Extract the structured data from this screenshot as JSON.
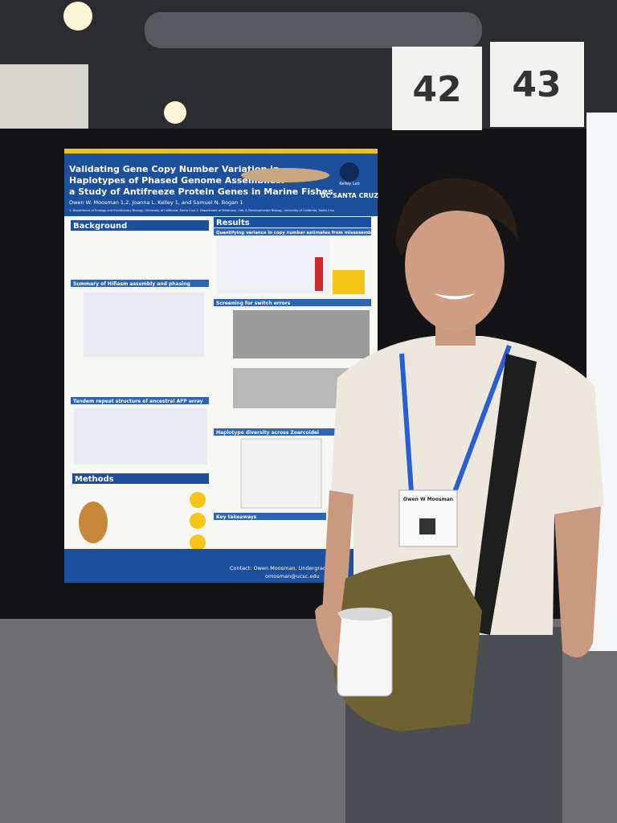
{
  "signs": [
    "42",
    "43"
  ],
  "poster": {
    "title": [
      "Validating Gene Copy Number Variation in",
      "Haplotypes of Phased Genome Assemblies:",
      "a Study of Antifreeze Protein Genes in Marine Fishes"
    ],
    "authors": "Owen W. Moosman 1,2, Joanna L. Kelley 1, and Samuel N. Bogan 1",
    "affiliation": "1. Department of Ecology and Evolutionary Biology, University of California, Santa Cruz  2. Department of Molecular, Cell, & Developmental Biology, University of California, Santa Cruz",
    "logos": [
      "Kelley Lab",
      "UC SANTA CRUZ"
    ],
    "sections": [
      "Background",
      "Results",
      "Methods"
    ],
    "subsections": [
      "Summary of Hifiasm assembly and phasing",
      "Tandem repeat structure of ancestral AFP array",
      "Quantifying variance in copy number estimates from misassembly",
      "Screening for switch errors",
      "Haplotype diversity across Zoarcoidei",
      "Key takeaways"
    ],
    "contact": [
      "Contact: Owen Moosman, Undergraduat",
      "omosman@ucsc.edu"
    ]
  },
  "badge": {
    "name": "Owen W Moosman"
  }
}
